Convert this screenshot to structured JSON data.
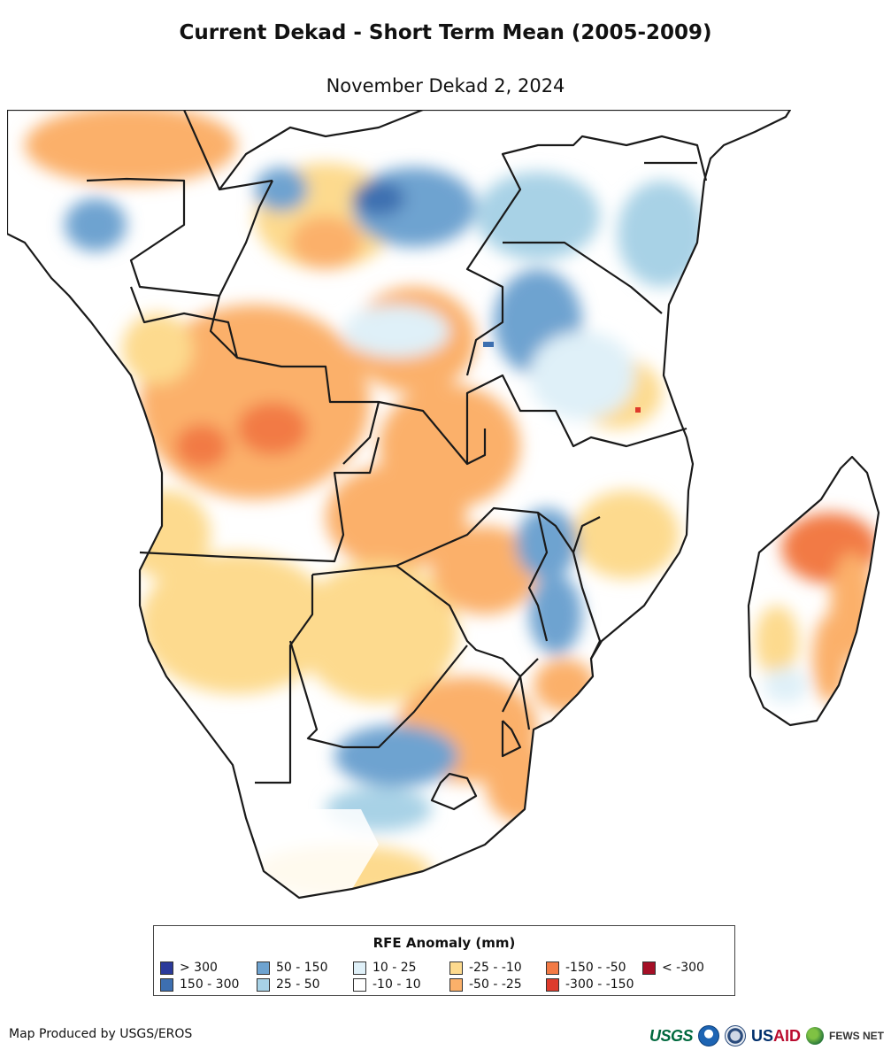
{
  "header": {
    "title": "Current Dekad - Short Term Mean (2005-2009)",
    "subtitle": "November Dekad 2, 2024"
  },
  "map": {
    "region": "Southern and Central Africa",
    "colors": {
      "ocean": "#ffffff",
      "border": "#1a1a1a"
    }
  },
  "legend": {
    "title": "RFE Anomaly (mm)",
    "items": [
      {
        "label": "> 300",
        "color": "#2b3a9a"
      },
      {
        "label": "150 - 300",
        "color": "#3d6fb0"
      },
      {
        "label": "50 - 150",
        "color": "#6ea3d0"
      },
      {
        "label": "25 - 50",
        "color": "#a8d2e6"
      },
      {
        "label": "10 - 25",
        "color": "#dff0f8"
      },
      {
        "label": "-10 - 10",
        "color": "#ffffff"
      },
      {
        "label": "-25 - -10",
        "color": "#fdda8e"
      },
      {
        "label": "-50 - -25",
        "color": "#fbb06a"
      },
      {
        "label": "-150 - -50",
        "color": "#f27a45"
      },
      {
        "label": "-300 - -150",
        "color": "#de3b2c"
      },
      {
        "label": "< -300",
        "color": "#a50f26"
      }
    ]
  },
  "footer": {
    "credit": "Map Produced by USGS/EROS",
    "logos": {
      "usgs": "USGS",
      "usaid_us": "US",
      "usaid_aid": "AID",
      "fews": "FEWS NET"
    }
  }
}
